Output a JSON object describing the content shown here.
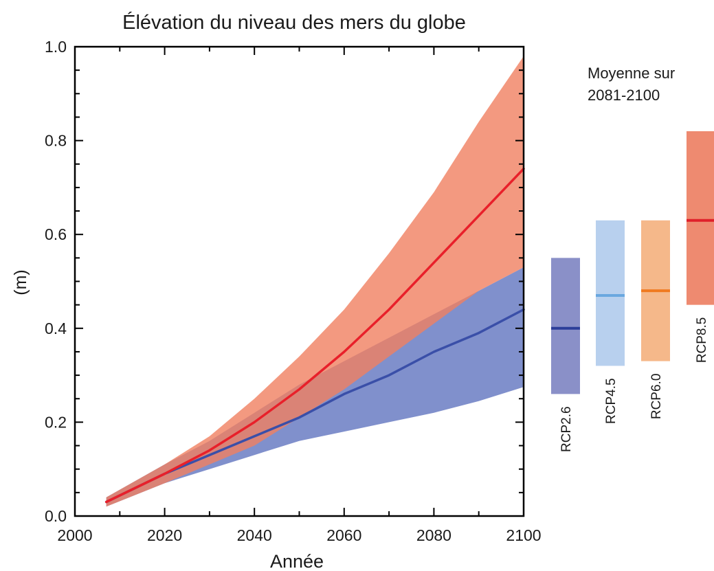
{
  "chart_data": {
    "type": "area",
    "title": "Élévation du niveau des mers du globe",
    "xlabel": "Année",
    "ylabel": "(m)",
    "xlim": [
      2000,
      2100
    ],
    "ylim": [
      0,
      1.0
    ],
    "x_ticks": [
      2000,
      2020,
      2040,
      2060,
      2080,
      2100
    ],
    "x_tick_labels": [
      "2000",
      "2020",
      "2040",
      "2060",
      "2080",
      "2100"
    ],
    "y_ticks": [
      0,
      0.2,
      0.4,
      0.6,
      0.8,
      1.0
    ],
    "y_tick_labels": [
      "0.0",
      "0.2",
      "0.4",
      "0.6",
      "0.8",
      "1.0"
    ],
    "grid": false,
    "series": [
      {
        "color": "#3a4fa8",
        "band_color": "#8090cc",
        "x": [
          2007,
          2020,
          2030,
          2040,
          2050,
          2060,
          2070,
          2080,
          2090,
          2100
        ],
        "mean": [
          0.03,
          0.09,
          0.13,
          0.17,
          0.21,
          0.26,
          0.3,
          0.35,
          0.39,
          0.44
        ],
        "lower": [
          0.02,
          0.07,
          0.1,
          0.13,
          0.16,
          0.18,
          0.2,
          0.22,
          0.245,
          0.275
        ],
        "upper": [
          0.04,
          0.11,
          0.16,
          0.22,
          0.28,
          0.33,
          0.38,
          0.43,
          0.48,
          0.53
        ]
      },
      {
        "color": "#e8202a",
        "band_color": "#f08060",
        "x": [
          2007,
          2020,
          2030,
          2040,
          2050,
          2060,
          2070,
          2080,
          2090,
          2100
        ],
        "mean": [
          0.03,
          0.09,
          0.14,
          0.2,
          0.27,
          0.35,
          0.44,
          0.54,
          0.64,
          0.74
        ],
        "lower": [
          0.02,
          0.07,
          0.11,
          0.15,
          0.21,
          0.27,
          0.34,
          0.41,
          0.48,
          0.53
        ],
        "upper": [
          0.04,
          0.11,
          0.17,
          0.25,
          0.34,
          0.44,
          0.56,
          0.69,
          0.84,
          0.98
        ]
      }
    ],
    "side_panel": {
      "title_line1": "Moyenne sur",
      "title_line2": "2081-2100",
      "bars": [
        {
          "label": "RCP2.6",
          "low": 0.26,
          "high": 0.55,
          "mean": 0.4,
          "fill": "#8a90c8",
          "line": "#2c3e99"
        },
        {
          "label": "RCP4.5",
          "low": 0.32,
          "high": 0.63,
          "mean": 0.47,
          "fill": "#b8d0ee",
          "line": "#6aa8e0"
        },
        {
          "label": "RCP6.0",
          "low": 0.33,
          "high": 0.63,
          "mean": 0.48,
          "fill": "#f5b88a",
          "line": "#f07a20"
        },
        {
          "label": "RCP8.5",
          "low": 0.45,
          "high": 0.82,
          "mean": 0.63,
          "fill": "#ee8a70",
          "line": "#e0202a"
        }
      ]
    }
  }
}
